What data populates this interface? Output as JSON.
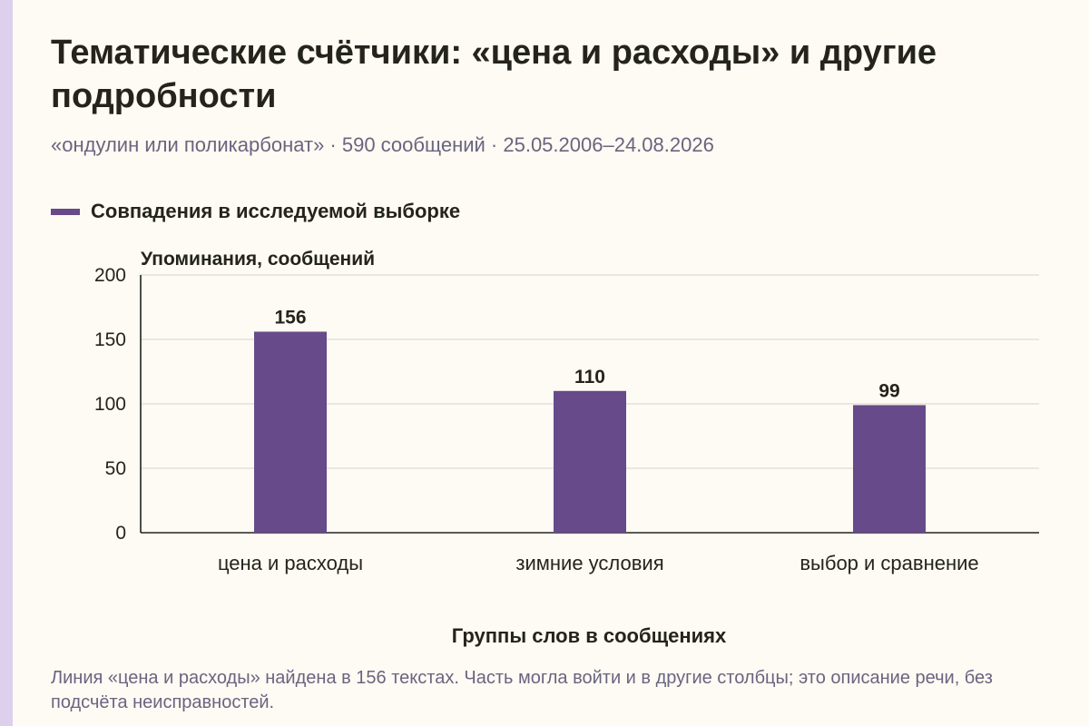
{
  "chart_data": {
    "type": "bar",
    "title": "Тематические счётчики: «цена и расходы» и другие подробности",
    "subtitle": "«ондулин или поликарбонат» · 590 сообщений · 25.05.2006–24.08.2026",
    "categories": [
      "цена и расходы",
      "зимние условия",
      "выбор и сравнение"
    ],
    "series": [
      {
        "name": "Совпадения в исследуемой выборке",
        "values": [
          156,
          110,
          99
        ],
        "color": "#674a89"
      }
    ],
    "ylabel": "Упоминания, сообщений",
    "xlabel": "Группы слов в сообщениях",
    "ylim": [
      0,
      200
    ],
    "yticks": [
      0,
      50,
      100,
      150,
      200
    ],
    "grid": true,
    "legend_position": "top-left",
    "note": "Линия «цена и расходы» найдена в 156 текстах. Часть могла войти и в другие столбцы; это описание речи, без подсчёта неисправностей."
  }
}
